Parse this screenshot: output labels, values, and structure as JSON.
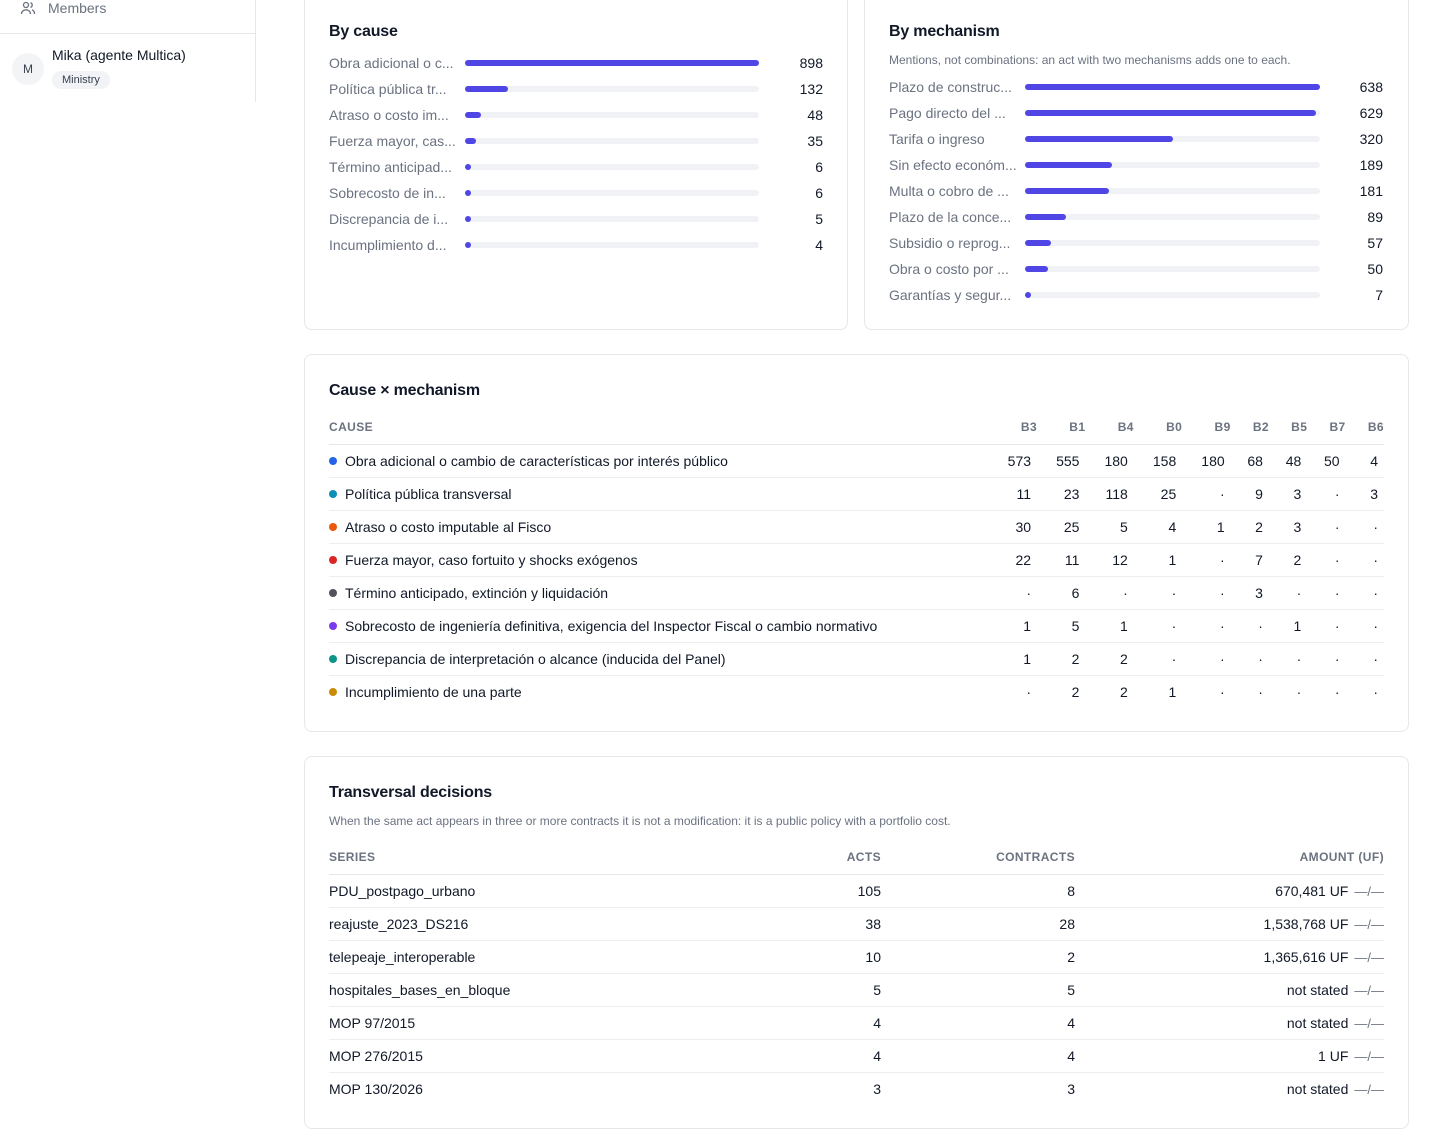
{
  "sidebar": {
    "members_label": "Members",
    "user": {
      "initial": "M",
      "name": "Mika (agente Multica)",
      "badge": "Ministry"
    }
  },
  "by_cause": {
    "title": "By cause",
    "max": 898,
    "rows": [
      {
        "label": "Obra adicional o c...",
        "value": 898
      },
      {
        "label": "Política pública tr...",
        "value": 132
      },
      {
        "label": "Atraso o costo im...",
        "value": 48
      },
      {
        "label": "Fuerza mayor, cas...",
        "value": 35
      },
      {
        "label": "Término anticipad...",
        "value": 6
      },
      {
        "label": "Sobrecosto de in...",
        "value": 6
      },
      {
        "label": "Discrepancia de i...",
        "value": 5
      },
      {
        "label": "Incumplimiento d...",
        "value": 4
      }
    ]
  },
  "by_mechanism": {
    "title": "By mechanism",
    "subtitle": "Mentions, not combinations: an act with two mechanisms adds one to each.",
    "max": 638,
    "rows": [
      {
        "label": "Plazo de construc...",
        "value": 638
      },
      {
        "label": "Pago directo del ...",
        "value": 629
      },
      {
        "label": "Tarifa o ingreso",
        "value": 320
      },
      {
        "label": "Sin efecto económ...",
        "value": 189
      },
      {
        "label": "Multa o cobro de ...",
        "value": 181
      },
      {
        "label": "Plazo de la conce...",
        "value": 89
      },
      {
        "label": "Subsidio o reprog...",
        "value": 57
      },
      {
        "label": "Obra o costo por ...",
        "value": 50
      },
      {
        "label": "Garantías y segur...",
        "value": 7
      }
    ]
  },
  "cross": {
    "title": "Cause × mechanism",
    "cause_header": "CAUSE",
    "columns": [
      "B3",
      "B1",
      "B4",
      "B0",
      "B9",
      "B2",
      "B5",
      "B7",
      "B6"
    ],
    "rows": [
      {
        "cause": "Obra adicional o cambio de características por interés público",
        "color": "#2563eb",
        "cells": [
          "573",
          "555",
          "180",
          "158",
          "180",
          "68",
          "48",
          "50",
          "4"
        ]
      },
      {
        "cause": "Política pública transversal",
        "color": "#0e8fb5",
        "cells": [
          "11",
          "23",
          "118",
          "25",
          "·",
          "9",
          "3",
          "·",
          "3"
        ]
      },
      {
        "cause": "Atraso o costo imputable al Fisco",
        "color": "#ea580c",
        "cells": [
          "30",
          "25",
          "5",
          "4",
          "1",
          "2",
          "3",
          "·",
          "·"
        ]
      },
      {
        "cause": "Fuerza mayor, caso fortuito y shocks exógenos",
        "color": "#dc2626",
        "cells": [
          "22",
          "11",
          "12",
          "1",
          "·",
          "7",
          "2",
          "·",
          "·"
        ]
      },
      {
        "cause": "Término anticipado, extinción y liquidación",
        "color": "#52525b",
        "cells": [
          "·",
          "6",
          "·",
          "·",
          "·",
          "3",
          "·",
          "·",
          "·"
        ]
      },
      {
        "cause": "Sobrecosto de ingeniería definitiva, exigencia del Inspector Fiscal o cambio normativo",
        "color": "#7c3aed",
        "cells": [
          "1",
          "5",
          "1",
          "·",
          "·",
          "·",
          "1",
          "·",
          "·"
        ]
      },
      {
        "cause": "Discrepancia de interpretación o alcance (inducida del Panel)",
        "color": "#0d9488",
        "cells": [
          "1",
          "2",
          "2",
          "·",
          "·",
          "·",
          "·",
          "·",
          "·"
        ]
      },
      {
        "cause": "Incumplimiento de una parte",
        "color": "#ca8a04",
        "cells": [
          "·",
          "2",
          "2",
          "1",
          "·",
          "·",
          "·",
          "·",
          "·"
        ]
      }
    ]
  },
  "transversal": {
    "title": "Transversal decisions",
    "subtitle": "When the same act appears in three or more contracts it is not a modification: it is a public policy with a portfolio cost.",
    "headers": {
      "series": "SERIES",
      "acts": "ACTS",
      "contracts": "CONTRACTS",
      "amount": "AMOUNT (UF)"
    },
    "link_glyph": "—/—",
    "rows": [
      {
        "series": "PDU_postpago_urbano",
        "acts": "105",
        "contracts": "8",
        "amount": "670,481 UF"
      },
      {
        "series": "reajuste_2023_DS216",
        "acts": "38",
        "contracts": "28",
        "amount": "1,538,768 UF"
      },
      {
        "series": "telepeaje_interoperable",
        "acts": "10",
        "contracts": "2",
        "amount": "1,365,616 UF"
      },
      {
        "series": "hospitales_bases_en_bloque",
        "acts": "5",
        "contracts": "5",
        "amount": "not stated"
      },
      {
        "series": "MOP 97/2015",
        "acts": "4",
        "contracts": "4",
        "amount": "not stated"
      },
      {
        "series": "MOP 276/2015",
        "acts": "4",
        "contracts": "4",
        "amount": "1 UF"
      },
      {
        "series": "MOP 130/2026",
        "acts": "3",
        "contracts": "3",
        "amount": "not stated"
      }
    ]
  }
}
